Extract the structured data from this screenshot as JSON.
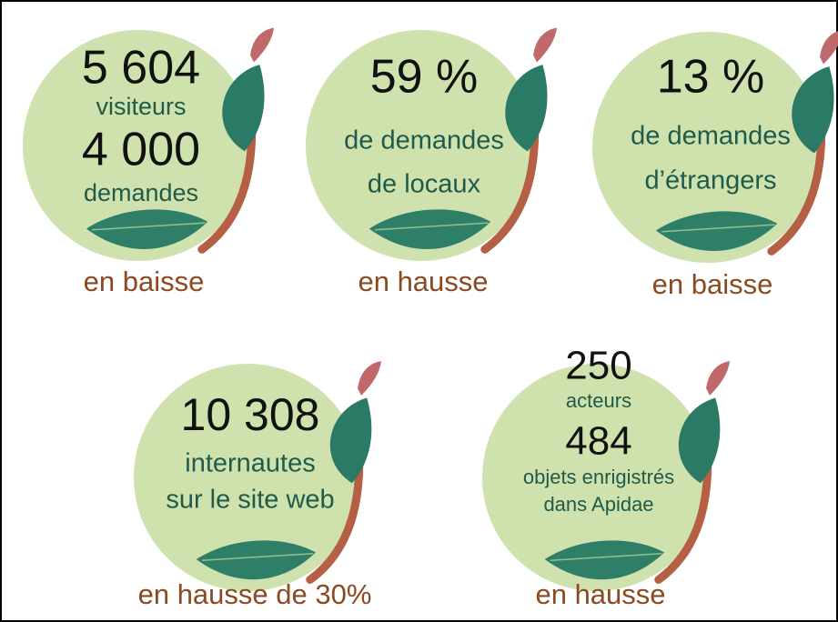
{
  "items": [
    {
      "lines": [
        "5 604",
        "visiteurs",
        "4 000",
        "demandes"
      ],
      "trend": "en baisse"
    },
    {
      "lines": [
        "59 %",
        "de demandes",
        "de locaux"
      ],
      "trend": "en hausse"
    },
    {
      "lines": [
        "13 %",
        "de demandes",
        "d’étrangers"
      ],
      "trend": "en baisse"
    },
    {
      "lines": [
        "10 308",
        "internautes",
        "sur le site web"
      ],
      "trend": "en hausse de 30%"
    },
    {
      "lines": [
        "250",
        "acteurs",
        "484",
        "objets enrigistrés",
        "dans Apidae"
      ],
      "trend": "en hausse"
    }
  ]
}
